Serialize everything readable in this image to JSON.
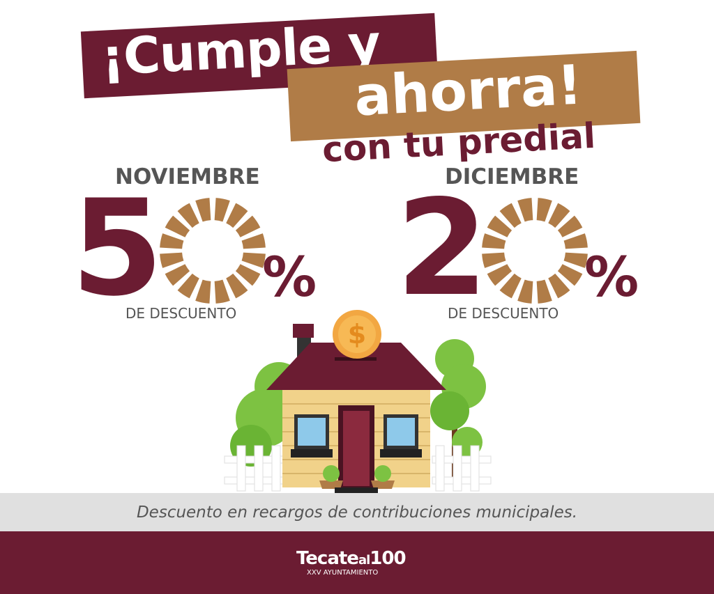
{
  "headline": {
    "line1": "¡Cumple y",
    "line2": "ahorra!",
    "line3": "con tu predial"
  },
  "offers": [
    {
      "month": "NOVIEMBRE",
      "digit": "5",
      "percent_sign": "%",
      "label": "DE DESCUENTO",
      "value": "50%"
    },
    {
      "month": "DICIEMBRE",
      "digit": "2",
      "percent_sign": "%",
      "label": "DE DESCUENTO",
      "value": "20%"
    }
  ],
  "band_text": "Descuento en recargos de contribuciones municipales.",
  "footer": {
    "logo_main": "Tecate",
    "logo_al": "al",
    "logo_num": "100",
    "logo_sub": "XXV AYUNTAMIENTO"
  },
  "colors": {
    "maroon": "#6b1c32",
    "tan": "#b07c47",
    "gray": "#555555",
    "band": "#e0e0e0"
  }
}
